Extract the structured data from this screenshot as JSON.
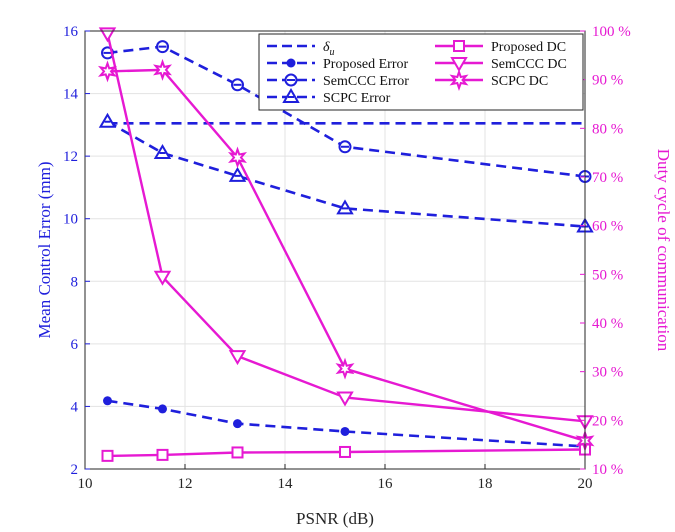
{
  "chart_data": {
    "type": "line",
    "xlabel": "PSNR (dB)",
    "ylabel_left": "Mean Control Error (mm)",
    "ylabel_right": "Duty cycle of communication",
    "xlim": [
      10,
      20
    ],
    "ylim_left": [
      2,
      16
    ],
    "ylim_right": [
      10,
      100
    ],
    "xticks": [
      10,
      12,
      14,
      16,
      18,
      20
    ],
    "yticks_left": [
      2,
      4,
      6,
      8,
      10,
      12,
      14,
      16
    ],
    "yticks_right": [
      10,
      20,
      30,
      40,
      50,
      60,
      70,
      80,
      90,
      100
    ],
    "right_tick_suffix": " %",
    "grid": true,
    "legend_position": "top-right",
    "colors": {
      "left": "#1f1fdc",
      "right": "#e619d2"
    },
    "series": [
      {
        "name": "δ_u",
        "legend_label": "δu",
        "axis": "left",
        "marker": "none",
        "style": "dashed",
        "x": [
          10.45,
          20
        ],
        "values": [
          13.05,
          13.05
        ]
      },
      {
        "name": "Proposed Error",
        "legend_label": "Proposed Error",
        "axis": "left",
        "marker": "dot",
        "style": "dashed",
        "x": [
          10.45,
          11.55,
          13.05,
          15.2,
          20
        ],
        "values": [
          4.18,
          3.92,
          3.45,
          3.2,
          2.72
        ]
      },
      {
        "name": "SemCCC Error",
        "legend_label": "SemCCC Error",
        "axis": "left",
        "marker": "circle",
        "style": "dashed",
        "x": [
          10.45,
          11.55,
          13.05,
          15.2,
          20
        ],
        "values": [
          15.3,
          15.5,
          14.28,
          12.3,
          11.35
        ]
      },
      {
        "name": "SCPC Error",
        "legend_label": "SCPC Error",
        "axis": "left",
        "marker": "triangle",
        "style": "dashed",
        "x": [
          10.45,
          11.55,
          13.05,
          15.2,
          20
        ],
        "values": [
          13.1,
          12.1,
          11.37,
          10.33,
          9.75
        ]
      },
      {
        "name": "Proposed DC",
        "legend_label": "Proposed DC",
        "axis": "right",
        "marker": "square",
        "style": "solid",
        "x": [
          10.45,
          11.55,
          13.05,
          15.2,
          20
        ],
        "values": [
          12.7,
          12.9,
          13.4,
          13.5,
          14.0
        ]
      },
      {
        "name": "SemCCC DC",
        "legend_label": "SemCCC DC",
        "axis": "right",
        "marker": "triangle-down",
        "style": "solid",
        "x": [
          10.45,
          11.55,
          13.05,
          15.2,
          20
        ],
        "values": [
          99.5,
          49.5,
          33.2,
          24.7,
          19.8
        ]
      },
      {
        "name": "SCPC DC",
        "legend_label": "SCPC DC",
        "axis": "right",
        "marker": "star",
        "style": "solid",
        "x": [
          10.45,
          11.55,
          13.05,
          15.2,
          20
        ],
        "values": [
          91.7,
          92.0,
          74.0,
          30.6,
          15.8
        ]
      }
    ]
  }
}
